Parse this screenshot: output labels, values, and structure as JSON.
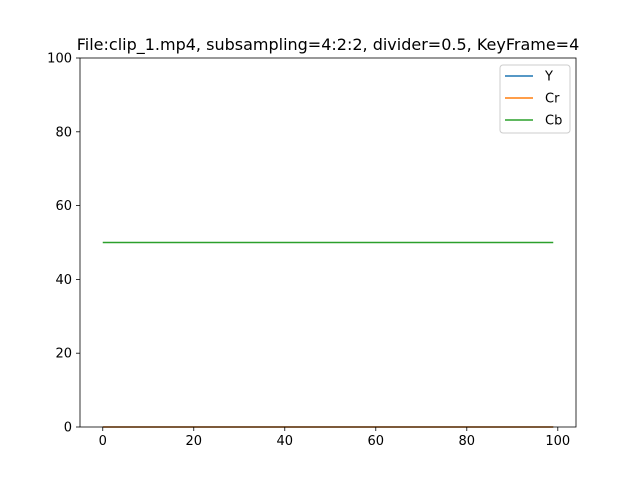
{
  "chart_data": {
    "type": "line",
    "title": "File:clip_1.mp4, subsampling=4:2:2, divider=0.5, KeyFrame=4",
    "xlabel": "",
    "ylabel": "",
    "xlim": [
      -5,
      104
    ],
    "ylim": [
      0,
      100
    ],
    "x_ticks": [
      0,
      20,
      40,
      60,
      80,
      100
    ],
    "y_ticks": [
      0,
      20,
      40,
      60,
      80,
      100
    ],
    "grid": false,
    "legend_position": "top-right",
    "series": [
      {
        "name": "Y",
        "color": "#1f77b4",
        "x": [
          0,
          99
        ],
        "y": [
          0,
          0
        ]
      },
      {
        "name": "Cr",
        "color": "#ff7f0e",
        "x": [
          0,
          99
        ],
        "y": [
          0,
          0
        ]
      },
      {
        "name": "Cb",
        "color": "#2ca02c",
        "x": [
          0,
          99
        ],
        "y": [
          50,
          50
        ]
      }
    ]
  }
}
